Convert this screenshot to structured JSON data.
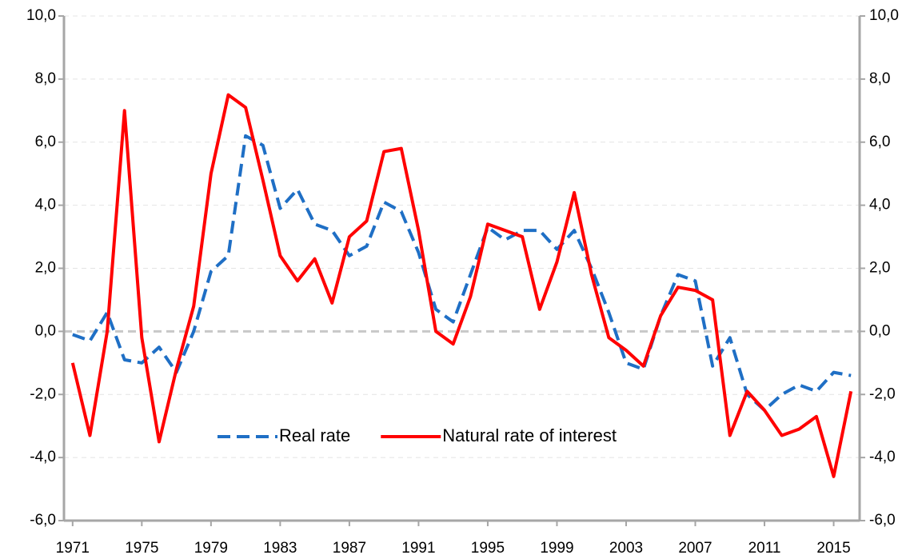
{
  "chart_data": {
    "type": "line",
    "x": [
      1971,
      1972,
      1973,
      1974,
      1975,
      1976,
      1977,
      1978,
      1979,
      1980,
      1981,
      1982,
      1983,
      1984,
      1985,
      1986,
      1987,
      1988,
      1989,
      1990,
      1991,
      1992,
      1993,
      1994,
      1995,
      1996,
      1997,
      1998,
      1999,
      2000,
      2001,
      2002,
      2003,
      2004,
      2005,
      2006,
      2007,
      2008,
      2009,
      2010,
      2011,
      2012,
      2013,
      2014,
      2015,
      2016
    ],
    "series": [
      {
        "name": "Real rate",
        "color": "#1f6fc5",
        "dash": "dashed",
        "values": [
          -0.1,
          -0.3,
          0.6,
          -0.9,
          -1.0,
          -0.5,
          -1.3,
          0.0,
          1.9,
          2.4,
          6.2,
          5.9,
          3.9,
          4.5,
          3.4,
          3.2,
          2.4,
          2.7,
          4.1,
          3.8,
          2.5,
          0.7,
          0.3,
          1.8,
          3.3,
          2.9,
          3.2,
          3.2,
          2.6,
          3.2,
          2.0,
          0.6,
          -1.0,
          -1.2,
          0.5,
          1.8,
          1.6,
          -1.1,
          -0.2,
          -2.0,
          -2.5,
          -2.0,
          -1.7,
          -1.9,
          -1.3,
          -1.4
        ]
      },
      {
        "name": "Natural rate of interest",
        "color": "#ff0000",
        "dash": "solid",
        "values": [
          -1.0,
          -3.3,
          0.0,
          7.0,
          -0.2,
          -3.5,
          -1.2,
          0.8,
          5.0,
          7.5,
          7.1,
          4.8,
          2.4,
          1.6,
          2.3,
          0.9,
          3.0,
          3.5,
          5.7,
          5.8,
          3.2,
          0.0,
          -0.4,
          1.1,
          3.4,
          3.2,
          3.0,
          0.7,
          2.2,
          4.4,
          1.8,
          -0.2,
          -0.6,
          -1.1,
          0.5,
          1.4,
          1.3,
          1.0,
          -3.3,
          -1.9,
          -2.5,
          -3.3,
          -3.1,
          -2.7,
          -4.6,
          -1.9
        ]
      }
    ],
    "xlim": [
      1970.5,
      2016.5
    ],
    "xticks": [
      1971,
      1975,
      1979,
      1983,
      1987,
      1991,
      1995,
      1999,
      2003,
      2007,
      2011,
      2015
    ],
    "ylim": [
      -6,
      10
    ],
    "yticks": [
      {
        "value": -6,
        "label": "-6,0"
      },
      {
        "value": -4,
        "label": "-4,0"
      },
      {
        "value": -2,
        "label": "-2,0"
      },
      {
        "value": 0,
        "label": "0,0"
      },
      {
        "value": 2,
        "label": "2,0"
      },
      {
        "value": 4,
        "label": "4,0"
      },
      {
        "value": 6,
        "label": "6,0"
      },
      {
        "value": 8,
        "label": "8,0"
      },
      {
        "value": 10,
        "label": "10,0"
      }
    ],
    "y2lim": [
      -6,
      10
    ],
    "y2ticks": [
      {
        "value": -6,
        "label": "-6,0"
      },
      {
        "value": -4,
        "label": "-4,0"
      },
      {
        "value": -2,
        "label": "-2,0"
      },
      {
        "value": 0,
        "label": "0,0"
      },
      {
        "value": 2,
        "label": "2,0"
      },
      {
        "value": 4,
        "label": "4,0"
      },
      {
        "value": 6,
        "label": "6,0"
      },
      {
        "value": 8,
        "label": "8,0"
      },
      {
        "value": 10,
        "label": "10,0"
      }
    ],
    "grid": true,
    "legend": "bottom-center"
  }
}
